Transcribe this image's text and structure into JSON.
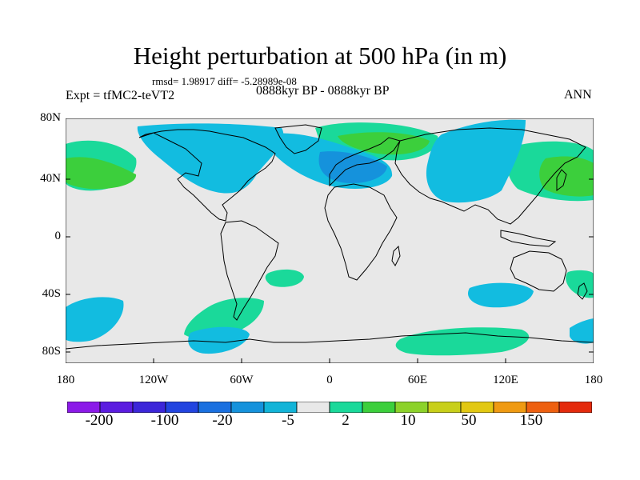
{
  "figure": {
    "title": "Height perturbation at 500 hPa (in m)",
    "stats": "rmsd= 1.98917 diff= -5.28989e-08",
    "experiment": "Expt = tfMC2-teVT2",
    "period": "0888kyr BP - 0888kyr BP",
    "season": "ANN"
  },
  "axes": {
    "y_ticks": [
      "80N",
      "40N",
      "0",
      "40S",
      "80S"
    ],
    "x_ticks": [
      "180",
      "120W",
      "60W",
      "0",
      "60E",
      "120E",
      "180"
    ]
  },
  "colorbar": {
    "colors": [
      "#8b1ae8",
      "#5b1ce0",
      "#3c26d9",
      "#2244e0",
      "#1a70e0",
      "#1592dc",
      "#12b4d8",
      "#e8e8e8",
      "#1ad99a",
      "#3ccf3c",
      "#8cd22a",
      "#c8cf1a",
      "#e2c812",
      "#ef9a12",
      "#ee6010",
      "#e42a0c"
    ],
    "labels": [
      "-200",
      "-100",
      "-20",
      "-5",
      "2",
      "10",
      "50",
      "150"
    ]
  },
  "map_colors": {
    "background": "#e8e8e8",
    "light_blue": "#12bce0",
    "mid_blue": "#1592dc",
    "green": "#1ad99a",
    "bright_green": "#3ccf3c"
  }
}
